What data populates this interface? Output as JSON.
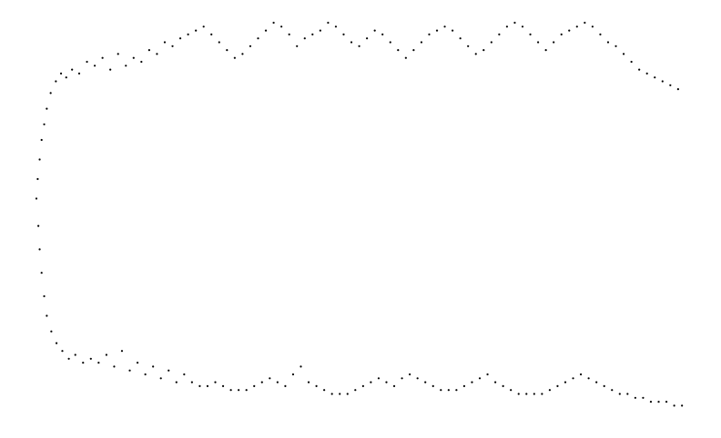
{
  "colors": {
    "background": "#ffffff",
    "points": "#000000"
  },
  "chart_data": {
    "type": "scatter",
    "title": "",
    "xlabel": "",
    "ylabel": "",
    "axes_visible": false,
    "grid": false,
    "legend": "none",
    "xlim": [
      0,
      100
    ],
    "ylim": [
      0,
      100
    ],
    "series": [
      {
        "points": [
          [
            0.0,
            55
          ],
          [
            0.2,
            60
          ],
          [
            0.3,
            48
          ],
          [
            0.5,
            65
          ],
          [
            0.5,
            42
          ],
          [
            0.8,
            70
          ],
          [
            0.8,
            36
          ],
          [
            1.2,
            74
          ],
          [
            1.2,
            30
          ],
          [
            1.6,
            78
          ],
          [
            1.6,
            25
          ],
          [
            2.2,
            82
          ],
          [
            2.3,
            21
          ],
          [
            3.0,
            85
          ],
          [
            3.1,
            18
          ],
          [
            3.8,
            87
          ],
          [
            4.0,
            16
          ],
          [
            4.6,
            86
          ],
          [
            5.0,
            14
          ],
          [
            5.5,
            88
          ],
          [
            6.0,
            15
          ],
          [
            6.6,
            87
          ],
          [
            7.2,
            13
          ],
          [
            7.8,
            90
          ],
          [
            8.4,
            14
          ],
          [
            9.0,
            89
          ],
          [
            9.6,
            13
          ],
          [
            10.2,
            91
          ],
          [
            10.8,
            15
          ],
          [
            11.4,
            88
          ],
          [
            12.0,
            12
          ],
          [
            12.6,
            92
          ],
          [
            13.2,
            16
          ],
          [
            13.8,
            89
          ],
          [
            14.4,
            11
          ],
          [
            15.0,
            91
          ],
          [
            15.6,
            13
          ],
          [
            16.2,
            90
          ],
          [
            16.8,
            10
          ],
          [
            17.4,
            93
          ],
          [
            18.0,
            12
          ],
          [
            18.6,
            92
          ],
          [
            19.2,
            9
          ],
          [
            19.8,
            95
          ],
          [
            20.4,
            11
          ],
          [
            21.0,
            94
          ],
          [
            21.6,
            8
          ],
          [
            22.2,
            96
          ],
          [
            22.8,
            10
          ],
          [
            23.4,
            97
          ],
          [
            24.0,
            8
          ],
          [
            24.6,
            98
          ],
          [
            25.2,
            7
          ],
          [
            25.8,
            99
          ],
          [
            26.4,
            7
          ],
          [
            27.0,
            97
          ],
          [
            27.6,
            8
          ],
          [
            28.2,
            95
          ],
          [
            28.8,
            7
          ],
          [
            29.4,
            93
          ],
          [
            30.0,
            6
          ],
          [
            30.6,
            91
          ],
          [
            31.2,
            6
          ],
          [
            31.8,
            92
          ],
          [
            32.4,
            6
          ],
          [
            33.0,
            94
          ],
          [
            33.6,
            7
          ],
          [
            34.2,
            96
          ],
          [
            34.8,
            8
          ],
          [
            35.4,
            98
          ],
          [
            36.0,
            9
          ],
          [
            36.6,
            100
          ],
          [
            37.2,
            8
          ],
          [
            37.8,
            99
          ],
          [
            38.4,
            7
          ],
          [
            39.0,
            97
          ],
          [
            39.6,
            10
          ],
          [
            40.2,
            94
          ],
          [
            40.8,
            12
          ],
          [
            41.4,
            96
          ],
          [
            42.0,
            8
          ],
          [
            42.6,
            97
          ],
          [
            43.2,
            7
          ],
          [
            43.8,
            98
          ],
          [
            44.4,
            6
          ],
          [
            45.0,
            100
          ],
          [
            45.6,
            5
          ],
          [
            46.2,
            99
          ],
          [
            46.8,
            5
          ],
          [
            47.4,
            97
          ],
          [
            48.0,
            5
          ],
          [
            48.6,
            95
          ],
          [
            49.2,
            6
          ],
          [
            49.8,
            94
          ],
          [
            50.4,
            7
          ],
          [
            51.0,
            96
          ],
          [
            51.6,
            8
          ],
          [
            52.2,
            98
          ],
          [
            52.8,
            9
          ],
          [
            53.4,
            97
          ],
          [
            54.0,
            8
          ],
          [
            54.6,
            95
          ],
          [
            55.2,
            7
          ],
          [
            55.8,
            93
          ],
          [
            56.4,
            9
          ],
          [
            57.0,
            91
          ],
          [
            57.6,
            10
          ],
          [
            58.2,
            93
          ],
          [
            58.8,
            9
          ],
          [
            59.4,
            95
          ],
          [
            60.0,
            8
          ],
          [
            60.6,
            97
          ],
          [
            61.2,
            7
          ],
          [
            61.8,
            98
          ],
          [
            62.4,
            6
          ],
          [
            63.0,
            99
          ],
          [
            63.6,
            6
          ],
          [
            64.2,
            98
          ],
          [
            64.8,
            6
          ],
          [
            65.4,
            96
          ],
          [
            66.0,
            7
          ],
          [
            66.6,
            94
          ],
          [
            67.2,
            8
          ],
          [
            67.8,
            92
          ],
          [
            68.4,
            9
          ],
          [
            69.0,
            93
          ],
          [
            69.6,
            10
          ],
          [
            70.2,
            95
          ],
          [
            70.8,
            8
          ],
          [
            71.4,
            97
          ],
          [
            72.0,
            7
          ],
          [
            72.6,
            99
          ],
          [
            73.2,
            6
          ],
          [
            73.8,
            100
          ],
          [
            74.4,
            5
          ],
          [
            75.0,
            99
          ],
          [
            75.6,
            5
          ],
          [
            76.2,
            97
          ],
          [
            76.8,
            5
          ],
          [
            77.4,
            95
          ],
          [
            78.0,
            5
          ],
          [
            78.6,
            93
          ],
          [
            79.2,
            6
          ],
          [
            79.8,
            95
          ],
          [
            80.4,
            7
          ],
          [
            81.0,
            97
          ],
          [
            81.6,
            8
          ],
          [
            82.2,
            98
          ],
          [
            82.8,
            9
          ],
          [
            83.4,
            99
          ],
          [
            84.0,
            10
          ],
          [
            84.6,
            100
          ],
          [
            85.2,
            9
          ],
          [
            85.8,
            99
          ],
          [
            86.4,
            8
          ],
          [
            87.0,
            97
          ],
          [
            87.6,
            7
          ],
          [
            88.2,
            95
          ],
          [
            88.8,
            6
          ],
          [
            89.4,
            94
          ],
          [
            90.0,
            5
          ],
          [
            90.6,
            92
          ],
          [
            91.2,
            5
          ],
          [
            91.8,
            90
          ],
          [
            92.4,
            4
          ],
          [
            93.0,
            88
          ],
          [
            93.6,
            4
          ],
          [
            94.2,
            87
          ],
          [
            94.8,
            3
          ],
          [
            95.4,
            86
          ],
          [
            96.0,
            3
          ],
          [
            96.6,
            85
          ],
          [
            97.2,
            3
          ],
          [
            97.8,
            84
          ],
          [
            98.4,
            2
          ],
          [
            99.0,
            83
          ],
          [
            99.6,
            2
          ]
        ]
      }
    ]
  }
}
